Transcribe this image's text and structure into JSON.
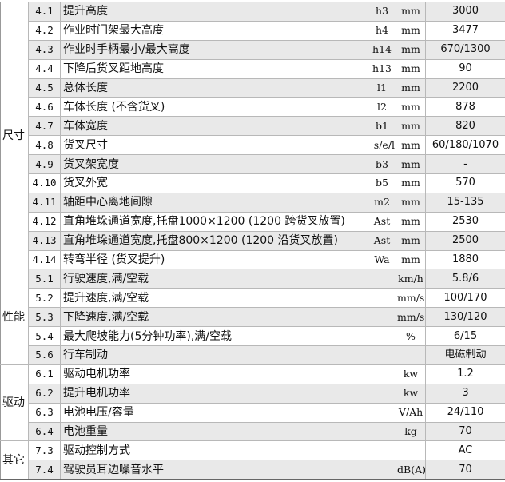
{
  "colors": {
    "row_alt": "#e9e9e9",
    "border": "#b8b8b8"
  },
  "sections": [
    {
      "category": "尺寸",
      "rows": [
        {
          "no": "4.1",
          "desc": "提升高度",
          "symbol": "h3",
          "unit": "mm",
          "value": "3000"
        },
        {
          "no": "4.2",
          "desc": "作业时门架最大高度",
          "symbol": "h4",
          "unit": "mm",
          "value": "3477"
        },
        {
          "no": "4.3",
          "desc": "作业时手柄最小/最大高度",
          "symbol": "h14",
          "unit": "mm",
          "value": "670/1300"
        },
        {
          "no": "4.4",
          "desc": "下降后货叉距地高度",
          "symbol": "h13",
          "unit": "mm",
          "value": "90"
        },
        {
          "no": "4.5",
          "desc": "总体长度",
          "symbol": "l1",
          "unit": "mm",
          "value": "2200"
        },
        {
          "no": "4.6",
          "desc": "车体长度 (不含货叉)",
          "symbol": "l2",
          "unit": "mm",
          "value": "878"
        },
        {
          "no": "4.7",
          "desc": "车体宽度",
          "symbol": "b1",
          "unit": "mm",
          "value": "820"
        },
        {
          "no": "4.8",
          "desc": "货叉尺寸",
          "symbol": "s/e/l",
          "unit": "mm",
          "value": "60/180/1070"
        },
        {
          "no": "4.9",
          "desc": "货叉架宽度",
          "symbol": "b3",
          "unit": "mm",
          "value": "-"
        },
        {
          "no": "4.10",
          "desc": "货叉外宽",
          "symbol": "b5",
          "unit": "mm",
          "value": "570"
        },
        {
          "no": "4.11",
          "desc": "轴距中心离地间隙",
          "symbol": "m2",
          "unit": "mm",
          "value": "15-135"
        },
        {
          "no": "4.12",
          "desc": "直角堆垛通道宽度,托盘1000×1200 (1200 跨货叉放置)",
          "symbol": "Ast",
          "unit": "mm",
          "value": "2530"
        },
        {
          "no": "4.13",
          "desc": "直角堆垛通道宽度,托盘800×1200 (1200 沿货叉放置)",
          "symbol": "Ast",
          "unit": "mm",
          "value": "2500"
        },
        {
          "no": "4.14",
          "desc": "转弯半径 (货叉提升)",
          "symbol": "Wa",
          "unit": "mm",
          "value": "1880"
        }
      ]
    },
    {
      "category": "性能",
      "rows": [
        {
          "no": "5.1",
          "desc": "行驶速度,满/空载",
          "symbol": "",
          "unit": "km/h",
          "value": "5.8/6"
        },
        {
          "no": "5.2",
          "desc": "提升速度,满/空载",
          "symbol": "",
          "unit": "mm/s",
          "value": "100/170"
        },
        {
          "no": "5.3",
          "desc": "下降速度,满/空载",
          "symbol": "",
          "unit": "mm/s",
          "value": "130/120"
        },
        {
          "no": "5.4",
          "desc": "最大爬坡能力(5分钟功率),满/空载",
          "symbol": "",
          "unit": "%",
          "value": "6/15"
        },
        {
          "no": "5.6",
          "desc": "行车制动",
          "symbol": "",
          "unit": "",
          "value": "电磁制动"
        }
      ]
    },
    {
      "category": "驱动",
      "rows": [
        {
          "no": "6.1",
          "desc": "驱动电机功率",
          "symbol": "",
          "unit": "kw",
          "value": "1.2"
        },
        {
          "no": "6.2",
          "desc": "提升电机功率",
          "symbol": "",
          "unit": "kw",
          "value": "3"
        },
        {
          "no": "6.3",
          "desc": "电池电压/容量",
          "symbol": "",
          "unit": "V/Ah",
          "value": "24/110"
        },
        {
          "no": "6.4",
          "desc": "电池重量",
          "symbol": "",
          "unit": "kg",
          "value": "70"
        }
      ]
    },
    {
      "category": "其它",
      "rows": [
        {
          "no": "7.3",
          "desc": "驱动控制方式",
          "symbol": "",
          "unit": "",
          "value": "AC"
        },
        {
          "no": "7.4",
          "desc": "驾驶员耳边噪音水平",
          "symbol": "",
          "unit": "dB(A)",
          "value": "70"
        }
      ]
    }
  ]
}
